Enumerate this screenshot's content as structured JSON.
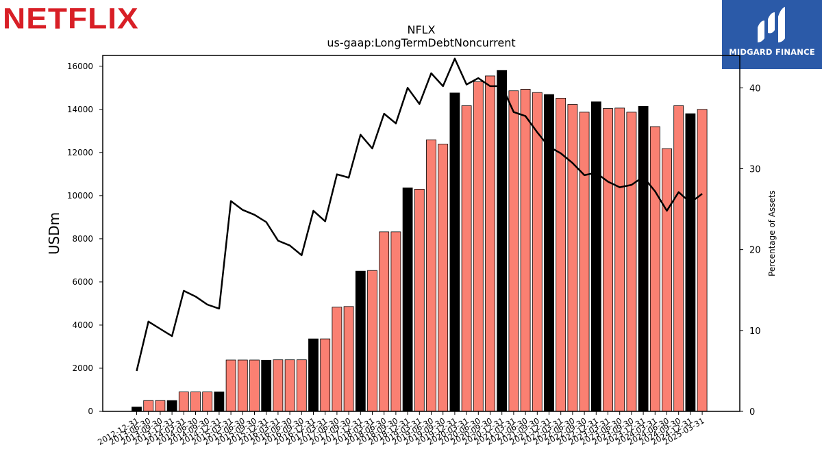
{
  "logos": {
    "left_text": "NETFLIX",
    "right_text": "MIDGARD FINANCE",
    "left_color": "#d81f26",
    "right_color": "#2b5aa8"
  },
  "chart_data": {
    "type": "bar",
    "title": "NFLX",
    "subtitle": "us-gaap:LongTermDebtNoncurrent",
    "ylabel": "USDm",
    "y2label": "Percentage of Assets",
    "ylim": [
      0,
      16500
    ],
    "y2lim": [
      0,
      44
    ],
    "yticks": [
      0,
      2000,
      4000,
      6000,
      8000,
      10000,
      12000,
      14000,
      16000
    ],
    "y2ticks": [
      0,
      10,
      20,
      30,
      40
    ],
    "bar_colors": {
      "annual": "#000000",
      "quarterly": "#fa8072"
    },
    "line_color": "#000000",
    "categories": [
      "2012-12-31",
      "2013-06-30",
      "2013-09-30",
      "2013-12-31",
      "2014-03-31",
      "2014-06-30",
      "2014-09-30",
      "2014-12-31",
      "2015-03-31",
      "2015-06-30",
      "2015-09-30",
      "2015-12-31",
      "2016-03-31",
      "2016-06-30",
      "2016-09-30",
      "2016-12-31",
      "2017-03-31",
      "2017-06-30",
      "2017-09-30",
      "2017-12-31",
      "2018-03-31",
      "2018-06-30",
      "2018-09-30",
      "2018-12-31",
      "2019-03-31",
      "2019-06-30",
      "2019-09-30",
      "2019-12-31",
      "2020-03-31",
      "2020-06-30",
      "2020-09-30",
      "2020-12-31",
      "2021-03-31",
      "2021-06-30",
      "2021-09-30",
      "2021-12-31",
      "2022-03-31",
      "2022-06-30",
      "2022-09-30",
      "2022-12-31",
      "2023-03-31",
      "2023-06-30",
      "2023-09-30",
      "2023-12-31",
      "2024-03-31",
      "2024-06-30",
      "2024-09-30",
      "2024-12-31",
      "2025-03-31"
    ],
    "annual_flags": [
      true,
      false,
      false,
      true,
      false,
      false,
      false,
      true,
      false,
      false,
      false,
      true,
      false,
      false,
      false,
      true,
      false,
      false,
      false,
      true,
      false,
      false,
      false,
      true,
      false,
      false,
      false,
      true,
      false,
      false,
      false,
      true,
      false,
      false,
      false,
      true,
      false,
      false,
      false,
      true,
      false,
      false,
      false,
      true,
      false,
      false,
      false,
      true,
      false
    ],
    "series": [
      {
        "name": "LongTermDebtNoncurrent",
        "axis": "left",
        "values": [
          200,
          500,
          500,
          500,
          900,
          900,
          900,
          900,
          2380,
          2380,
          2380,
          2370,
          2390,
          2390,
          2390,
          3360,
          3360,
          4830,
          4860,
          6500,
          6530,
          8320,
          8320,
          10360,
          10300,
          12590,
          12390,
          14760,
          14170,
          15280,
          15550,
          15810,
          14860,
          14930,
          14780,
          14690,
          14520,
          14230,
          13870,
          14350,
          14040,
          14060,
          13870,
          14140,
          13200,
          12180,
          14170,
          13800,
          14000
        ]
      },
      {
        "name": "Percentage of Assets",
        "axis": "right",
        "values": [
          5.0,
          11.1,
          10.2,
          9.3,
          14.9,
          14.2,
          13.2,
          12.7,
          26.0,
          24.9,
          24.3,
          23.4,
          21.1,
          20.5,
          19.3,
          24.8,
          23.5,
          29.3,
          28.9,
          34.2,
          32.5,
          36.8,
          35.6,
          40.0,
          38.0,
          41.8,
          40.2,
          43.6,
          40.4,
          41.2,
          40.2,
          40.2,
          37.0,
          36.5,
          34.5,
          32.7,
          31.9,
          30.7,
          29.2,
          29.5,
          28.4,
          27.7,
          28.0,
          29.0,
          27.2,
          24.8,
          27.1,
          25.8,
          26.9
        ]
      }
    ]
  }
}
